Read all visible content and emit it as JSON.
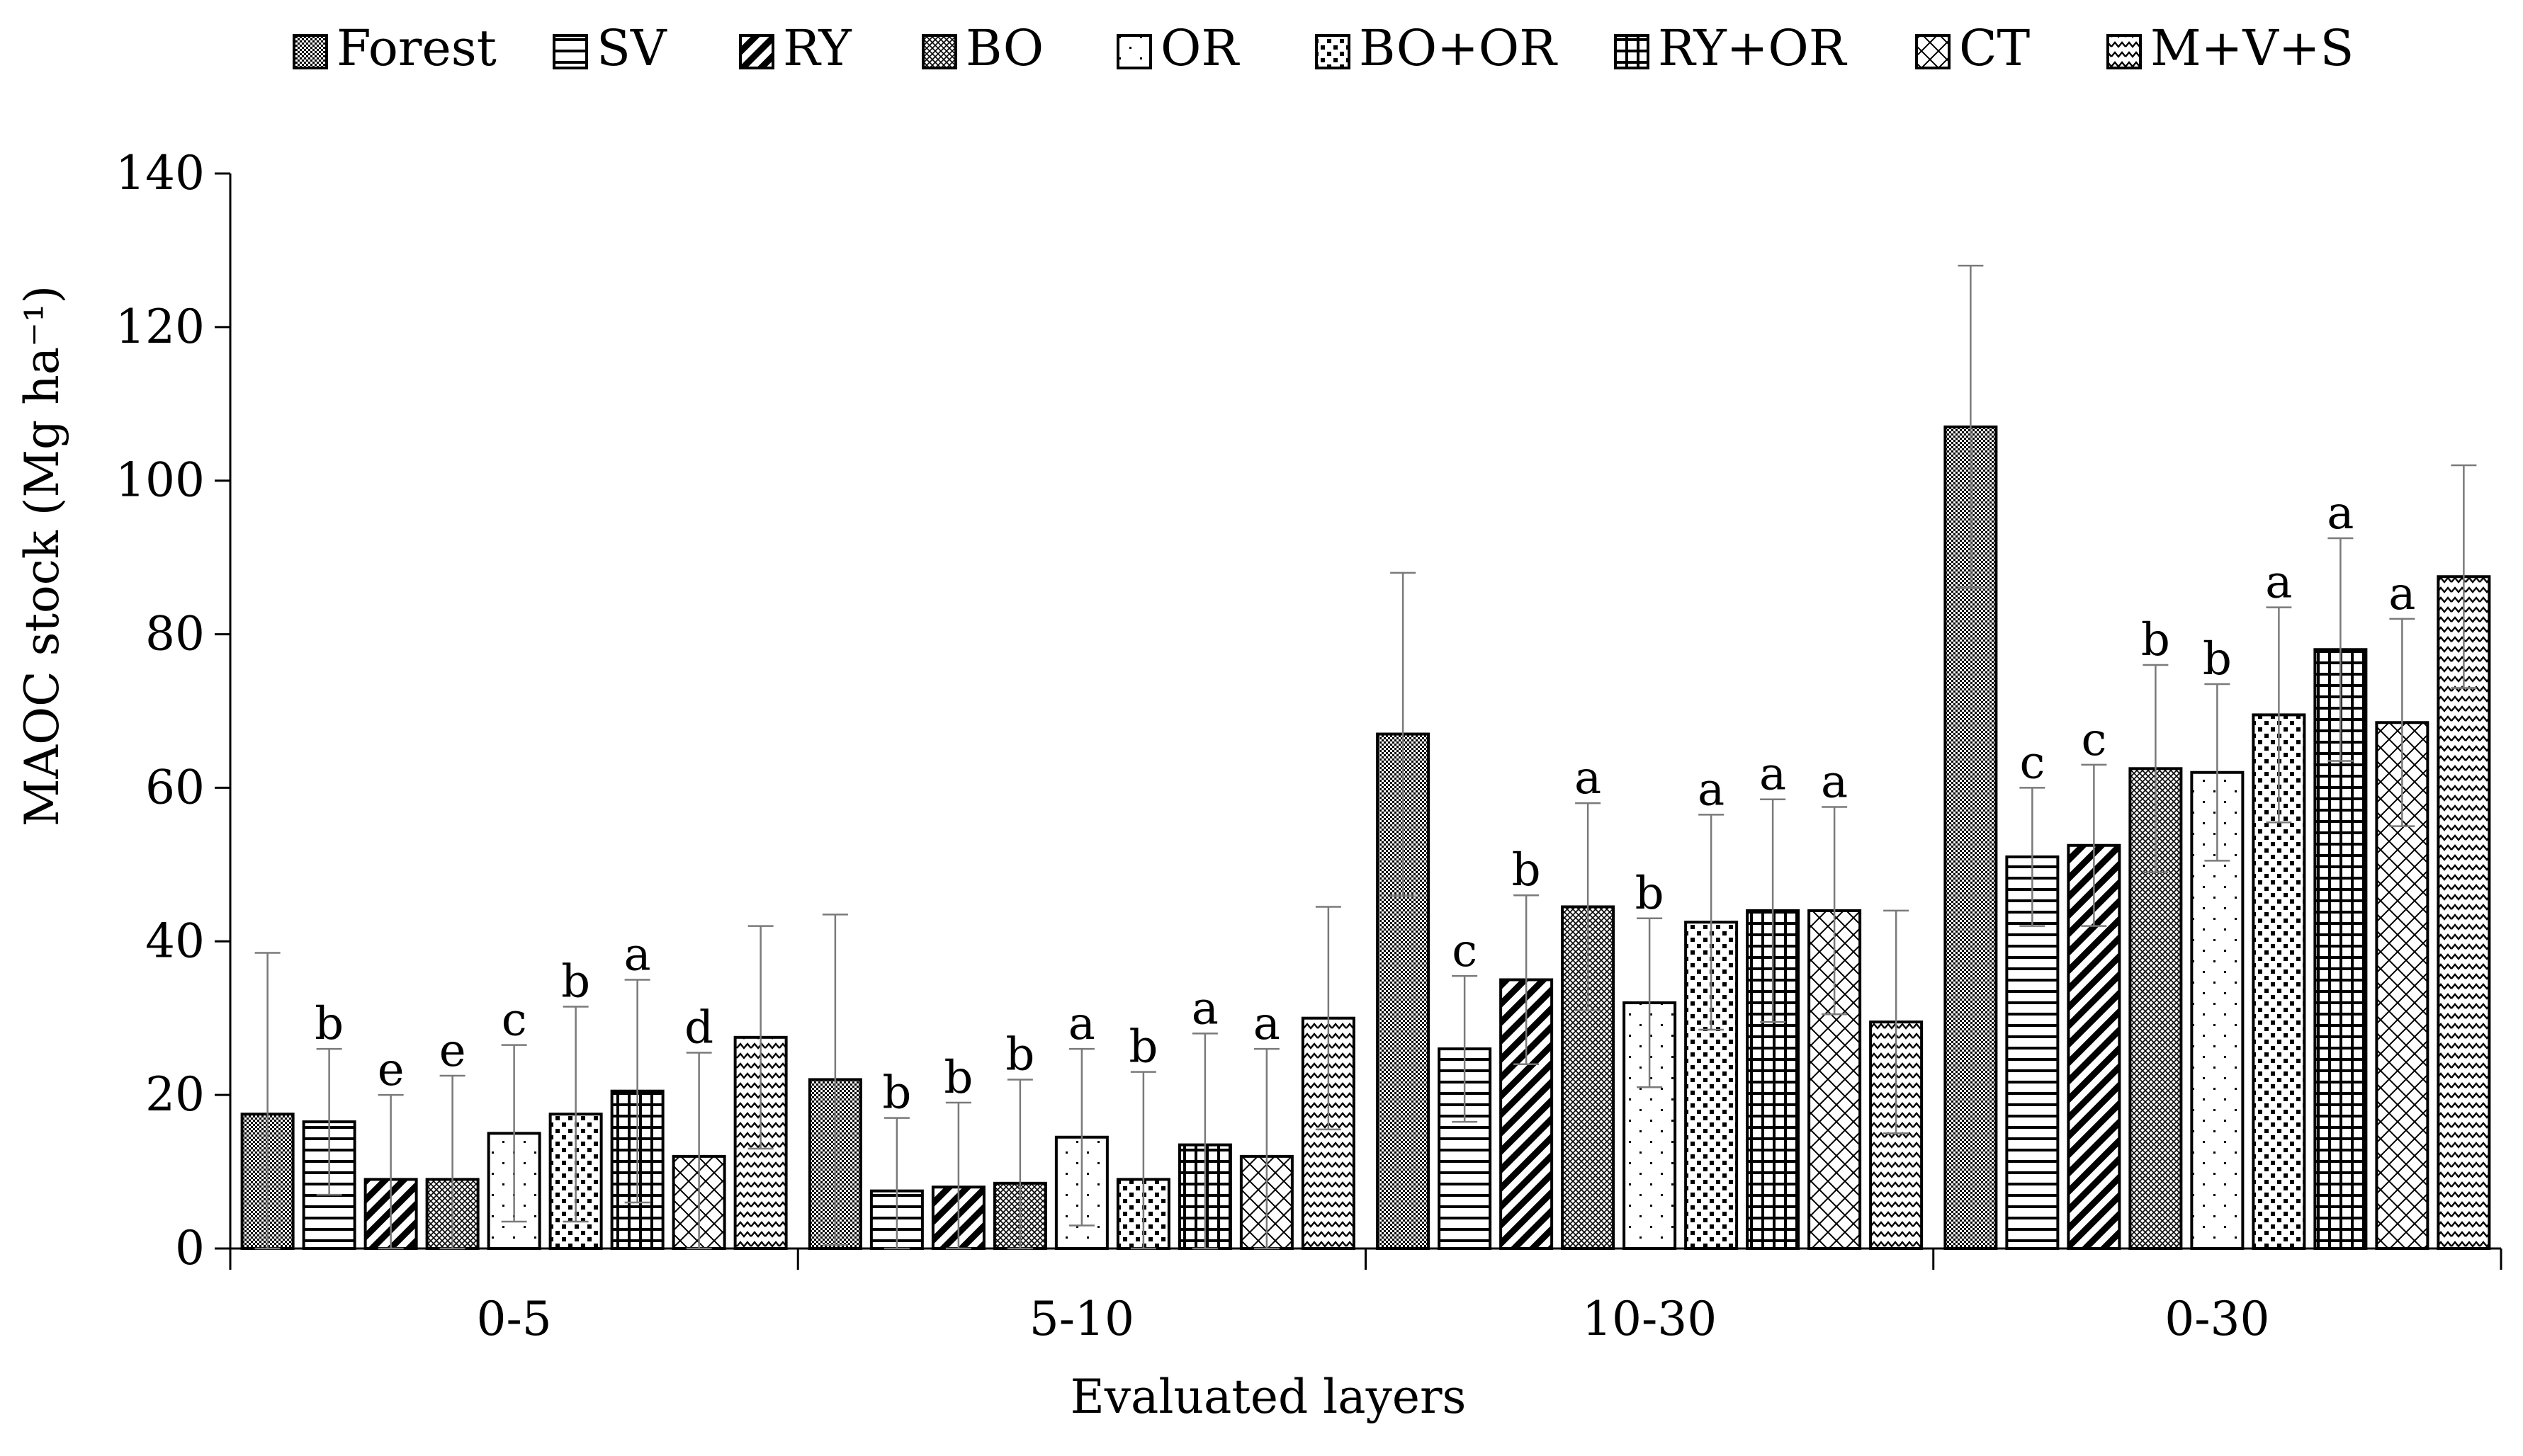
{
  "chart_data": {
    "type": "bar",
    "title": "",
    "xlabel": "Evaluated layers",
    "ylabel": "MAOC stock (Mg ha⁻¹)",
    "ylim": [
      0,
      140
    ],
    "yticks": [
      0,
      20,
      40,
      60,
      80,
      100,
      120,
      140
    ],
    "grid": false,
    "legend_position": "top",
    "categories": [
      "0-5",
      "5-10",
      "10-30",
      "0-30"
    ],
    "series": [
      {
        "name": "Forest",
        "pattern": "dense-dots",
        "values": [
          17.5,
          22,
          67,
          107
        ],
        "errors": [
          21,
          21.5,
          21,
          21
        ],
        "letters": [
          "",
          "",
          "",
          ""
        ]
      },
      {
        "name": "SV",
        "pattern": "hlines",
        "values": [
          16.5,
          7.5,
          26,
          51
        ],
        "errors": [
          9.5,
          9.5,
          9.5,
          9
        ],
        "letters": [
          "b",
          "b",
          "c",
          "c"
        ]
      },
      {
        "name": "RY",
        "pattern": "diag-thick",
        "values": [
          9,
          8,
          35,
          52.5
        ],
        "errors": [
          11,
          11,
          11,
          10.5
        ],
        "letters": [
          "e",
          "b",
          "b",
          "c"
        ]
      },
      {
        "name": "BO",
        "pattern": "cross-fine",
        "values": [
          9,
          8.5,
          44.5,
          62.5
        ],
        "errors": [
          13.5,
          13.5,
          13.5,
          13.5
        ],
        "letters": [
          "e",
          "b",
          "a",
          "b"
        ]
      },
      {
        "name": "OR",
        "pattern": "sparse-dots",
        "values": [
          15,
          14.5,
          32,
          62
        ],
        "errors": [
          11.5,
          11.5,
          11,
          11.5
        ],
        "letters": [
          "c",
          "a",
          "b",
          "b"
        ]
      },
      {
        "name": "BO+OR",
        "pattern": "bold-dots",
        "values": [
          17.5,
          9,
          42.5,
          69.5
        ],
        "errors": [
          14,
          14,
          14,
          14
        ],
        "letters": [
          "b",
          "b",
          "a",
          "a"
        ]
      },
      {
        "name": "RY+OR",
        "pattern": "grid",
        "values": [
          20.5,
          13.5,
          44,
          78
        ],
        "errors": [
          14.5,
          14.5,
          14.5,
          14.5
        ],
        "letters": [
          "a",
          "a",
          "a",
          "a"
        ]
      },
      {
        "name": "CT",
        "pattern": "diamond",
        "values": [
          12,
          12,
          44,
          68.5
        ],
        "errors": [
          13.5,
          14,
          13.5,
          13.5
        ],
        "letters": [
          "d",
          "a",
          "a",
          "a"
        ]
      },
      {
        "name": "M+V+S",
        "pattern": "wave",
        "values": [
          27.5,
          30,
          29.5,
          87.5
        ],
        "errors": [
          14.5,
          14.5,
          14.5,
          14.5
        ],
        "letters": [
          "",
          "",
          "",
          ""
        ]
      }
    ]
  }
}
